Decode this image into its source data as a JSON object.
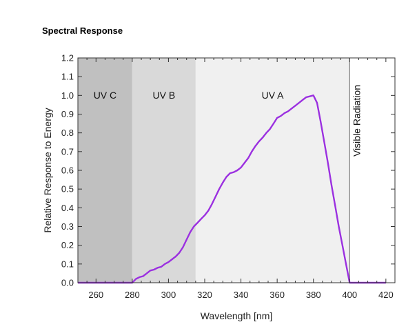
{
  "page_title": "Spectral Response",
  "chart_data": {
    "type": "line",
    "title": "Spectral Response",
    "xlabel": "Wavelength [nm]",
    "ylabel": "Relative Response to Energy",
    "xlim": [
      250,
      425
    ],
    "ylim": [
      0,
      1.2
    ],
    "x_ticks": [
      260,
      280,
      300,
      320,
      340,
      360,
      380,
      400,
      420
    ],
    "y_ticks": [
      0.0,
      0.1,
      0.2,
      0.3,
      0.4,
      0.5,
      0.6,
      0.7,
      0.8,
      0.9,
      1.0,
      1.1,
      1.2
    ],
    "y_tick_labels": [
      "0.0",
      "0.1",
      "0.2",
      "0.3",
      "0.4",
      "0.5",
      "0.6",
      "0.7",
      "0.8",
      "0.9",
      "1.0",
      "1.1",
      "1.2"
    ],
    "grid": false,
    "bands": [
      {
        "label": "UV C",
        "x_start": 250,
        "x_end": 280,
        "color": "#c0c0c0"
      },
      {
        "label": "UV B",
        "x_start": 280,
        "x_end": 315,
        "color": "#d9d9d9"
      },
      {
        "label": "UV A",
        "x_start": 315,
        "x_end": 400,
        "color": "#f0f0f0"
      },
      {
        "label": "Visible Radiation",
        "x_start": 400,
        "x_end": 425,
        "color": "#ffffff"
      }
    ],
    "series": [
      {
        "color": "#9b30e0",
        "x": [
          250,
          270,
          280,
          282,
          284,
          286,
          288,
          290,
          292,
          294,
          296,
          298,
          300,
          302,
          304,
          306,
          308,
          310,
          312,
          314,
          316,
          318,
          320,
          322,
          324,
          326,
          328,
          330,
          332,
          334,
          336,
          338,
          340,
          342,
          344,
          346,
          348,
          350,
          352,
          354,
          356,
          358,
          360,
          362,
          364,
          366,
          368,
          370,
          372,
          374,
          376,
          378,
          380,
          382,
          384,
          386,
          388,
          390,
          392,
          394,
          396,
          398,
          400,
          410,
          420
        ],
        "values": [
          0.0,
          0.0,
          0.0,
          0.02,
          0.03,
          0.035,
          0.05,
          0.065,
          0.07,
          0.08,
          0.085,
          0.1,
          0.11,
          0.125,
          0.14,
          0.16,
          0.19,
          0.23,
          0.27,
          0.3,
          0.32,
          0.34,
          0.36,
          0.385,
          0.42,
          0.46,
          0.5,
          0.535,
          0.565,
          0.585,
          0.59,
          0.6,
          0.615,
          0.64,
          0.665,
          0.7,
          0.73,
          0.755,
          0.775,
          0.8,
          0.82,
          0.85,
          0.88,
          0.89,
          0.905,
          0.915,
          0.93,
          0.945,
          0.96,
          0.975,
          0.99,
          0.995,
          1.0,
          0.96,
          0.86,
          0.75,
          0.64,
          0.52,
          0.41,
          0.3,
          0.2,
          0.1,
          0.0,
          0.0,
          0.0
        ]
      }
    ]
  }
}
